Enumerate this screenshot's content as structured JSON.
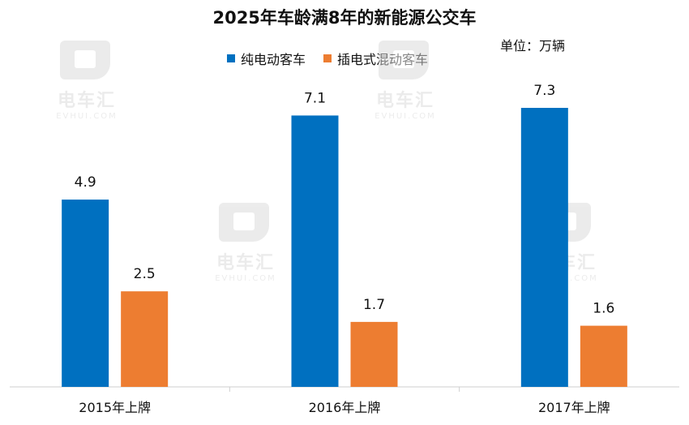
{
  "chart_data": {
    "type": "bar",
    "title": "2025年车龄满8年的新能源公交车",
    "unit_label": "单位：万辆",
    "categories": [
      "2015年上牌",
      "2016年上牌",
      "2017年上牌"
    ],
    "series": [
      {
        "name": "纯电动客车",
        "color": "#0070C0",
        "values": [
          4.9,
          7.1,
          7.3
        ]
      },
      {
        "name": "插电式混动客车",
        "color": "#ED7D31",
        "values": [
          2.5,
          1.7,
          1.6
        ]
      }
    ],
    "ylim": [
      0,
      8.0
    ],
    "grid": false,
    "legend": "top-center"
  },
  "watermark": {
    "brand": "电车汇",
    "sub": "EVHUI.COM",
    "icon": "evhui-logo-icon"
  }
}
